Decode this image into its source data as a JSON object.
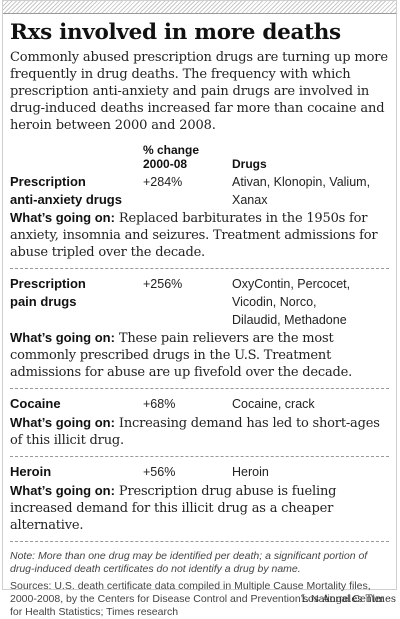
{
  "title": "Rxs involved in more deaths",
  "intro": "Commonly abused prescription drugs are turning up more frequently in drug deaths. The frequency with which prescription anti-anxiety and pain drugs are involved in drug-induced deaths increased far more than cocaine and heroin between 2000 and 2008.",
  "columns": {
    "change_line1": "% change",
    "change_line2": "2000-08",
    "drugs": "Drugs"
  },
  "rows": [
    {
      "category_line1": "Prescription",
      "category_line2": "anti-anxiety drugs",
      "change": "+284%",
      "drugs_line1": "Ativan, Klonopin, Valium,",
      "drugs_line2": "Xanax",
      "drugs_line3": "",
      "whats_label": "What’s going on:",
      "whats_text": "Replaced barbiturates in the 1950s for anxiety, insomnia and seizures. Treatment admissions for abuse tripled over the decade."
    },
    {
      "category_line1": "Prescription",
      "category_line2": "pain drugs",
      "change": "+256%",
      "drugs_line1": "OxyContin, Percocet,",
      "drugs_line2": "Vicodin, Norco,",
      "drugs_line3": "Dilaudid, Methadone",
      "whats_label": "What’s going on:",
      "whats_text": "These pain relievers are the most commonly prescribed drugs in the U.S. Treatment admissions for abuse are up fivefold over the decade."
    },
    {
      "category_line1": "Cocaine",
      "category_line2": "",
      "change": "+68%",
      "drugs_line1": "Cocaine, crack",
      "drugs_line2": "",
      "drugs_line3": "",
      "whats_label": "What’s going on:",
      "whats_text": "Increasing demand has led to short-ages of this illicit drug."
    },
    {
      "category_line1": "Heroin",
      "category_line2": "",
      "change": "+56%",
      "drugs_line1": "Heroin",
      "drugs_line2": "",
      "drugs_line3": "",
      "whats_label": "What’s going on:",
      "whats_text": "Prescription drug abuse is fueling increased demand for this illicit drug as a cheaper alternative."
    }
  ],
  "note": "Note: More than one drug may be identified per death; a significant portion of drug-induced death certificates do not identify a drug by name.",
  "sources": "Sources: U.S. death certificate data compiled in Multiple Cause Mortality files, 2000-2008, by the Centers for Disease Control and Prevention’s National Center for Health Statistics; Times research",
  "credit": "Los Angeles Times"
}
